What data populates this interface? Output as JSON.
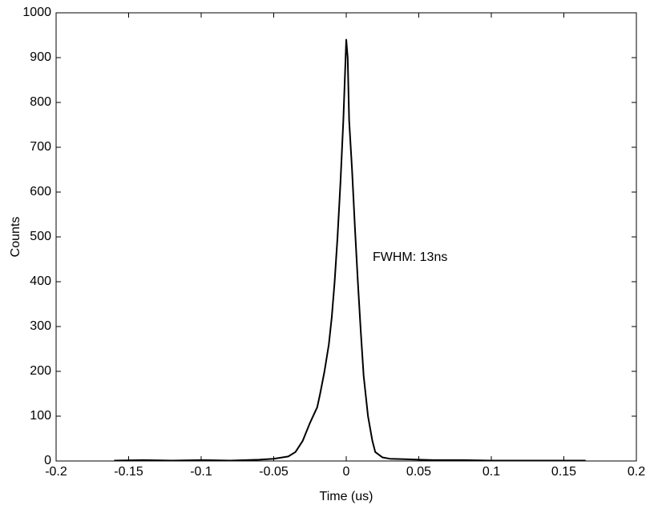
{
  "chart_data": {
    "type": "line",
    "xlabel": "Time (us)",
    "ylabel": "Counts",
    "annotation": "FWHM: 13ns",
    "x": [
      -0.16,
      -0.14,
      -0.12,
      -0.1,
      -0.08,
      -0.06,
      -0.05,
      -0.04,
      -0.035,
      -0.03,
      -0.025,
      -0.02,
      -0.018,
      -0.015,
      -0.012,
      -0.01,
      -0.008,
      -0.006,
      -0.004,
      -0.002,
      -0.001,
      0,
      0.001,
      0.002,
      0.004,
      0.006,
      0.008,
      0.01,
      0.012,
      0.015,
      0.018,
      0.02,
      0.025,
      0.03,
      0.04,
      0.05,
      0.06,
      0.08,
      0.1,
      0.12,
      0.14,
      0.165
    ],
    "values": [
      1,
      2,
      1,
      2,
      1,
      3,
      5,
      10,
      20,
      45,
      85,
      120,
      150,
      200,
      260,
      320,
      400,
      500,
      620,
      760,
      850,
      940,
      900,
      760,
      650,
      520,
      400,
      290,
      190,
      100,
      45,
      20,
      8,
      5,
      4,
      3,
      2,
      2,
      1,
      1,
      1,
      1
    ],
    "color": "#000000",
    "xlim": [
      -0.2,
      0.2
    ],
    "xticks": [
      -0.2,
      -0.15,
      -0.1,
      -0.05,
      0,
      0.05,
      0.1,
      0.15,
      0.2
    ],
    "ylim": [
      0,
      1000
    ],
    "yticks": [
      0,
      100,
      200,
      300,
      400,
      500,
      600,
      700,
      800,
      900,
      1000
    ],
    "grid": false
  }
}
